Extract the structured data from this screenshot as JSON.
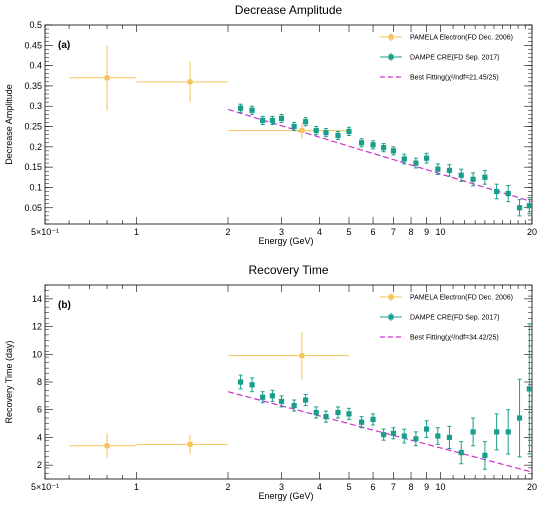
{
  "chart_data": [
    {
      "type": "scatter",
      "title": "Decrease Amplitude",
      "panel_label": "(a)",
      "xlabel": "Energy (GeV)",
      "ylabel": "Decrease Amplitude",
      "xscale": "log",
      "xlim": [
        0.5,
        20
      ],
      "ylim": [
        0.01,
        0.5
      ],
      "x_ticks": [
        "5×10⁻¹",
        "1",
        "2",
        "3",
        "4",
        "5",
        "6",
        "7",
        "8",
        "9",
        "10",
        "20"
      ],
      "y_ticks": [
        "0.05",
        "0.1",
        "0.15",
        "0.2",
        "0.25",
        "0.3",
        "0.35",
        "0.4",
        "0.45",
        "0.5"
      ],
      "legend_position": "top-right",
      "legend": [
        "PAMELA Electron(FD Dec. 2006)",
        "DAMPE CRE(FD Sep. 2017)",
        "Best Fitting(χ²/ndf=21.45/25)"
      ],
      "series": [
        {
          "color": "#f5c35a",
          "points": [
            {
              "x": 0.8,
              "xlo": 0.6,
              "xhi": 1.0,
              "y": 0.37,
              "err": 0.08
            },
            {
              "x": 1.5,
              "xlo": 1.0,
              "xhi": 2.0,
              "y": 0.36,
              "err": 0.05
            },
            {
              "x": 3.5,
              "xlo": 2.0,
              "xhi": 5.0,
              "y": 0.24,
              "err": 0.02
            }
          ]
        },
        {
          "color": "#1a9e8c",
          "points": [
            {
              "x": 2.2,
              "y": 0.295,
              "err": 0.01
            },
            {
              "x": 2.4,
              "y": 0.29,
              "err": 0.01
            },
            {
              "x": 2.6,
              "y": 0.265,
              "err": 0.01
            },
            {
              "x": 2.8,
              "y": 0.265,
              "err": 0.01
            },
            {
              "x": 3.0,
              "y": 0.27,
              "err": 0.01
            },
            {
              "x": 3.3,
              "y": 0.25,
              "err": 0.01
            },
            {
              "x": 3.6,
              "y": 0.262,
              "err": 0.01
            },
            {
              "x": 3.9,
              "y": 0.24,
              "err": 0.01
            },
            {
              "x": 4.2,
              "y": 0.235,
              "err": 0.01
            },
            {
              "x": 4.6,
              "y": 0.228,
              "err": 0.01
            },
            {
              "x": 5.0,
              "y": 0.238,
              "err": 0.01
            },
            {
              "x": 5.5,
              "y": 0.21,
              "err": 0.01
            },
            {
              "x": 6.0,
              "y": 0.205,
              "err": 0.01
            },
            {
              "x": 6.5,
              "y": 0.198,
              "err": 0.01
            },
            {
              "x": 7.0,
              "y": 0.19,
              "err": 0.01
            },
            {
              "x": 7.6,
              "y": 0.17,
              "err": 0.012
            },
            {
              "x": 8.3,
              "y": 0.16,
              "err": 0.012
            },
            {
              "x": 9.0,
              "y": 0.172,
              "err": 0.012
            },
            {
              "x": 9.8,
              "y": 0.145,
              "err": 0.013
            },
            {
              "x": 10.7,
              "y": 0.142,
              "err": 0.014
            },
            {
              "x": 11.7,
              "y": 0.13,
              "err": 0.015
            },
            {
              "x": 12.8,
              "y": 0.12,
              "err": 0.016
            },
            {
              "x": 14.0,
              "y": 0.125,
              "err": 0.017
            },
            {
              "x": 15.3,
              "y": 0.09,
              "err": 0.018
            },
            {
              "x": 16.7,
              "y": 0.085,
              "err": 0.02
            },
            {
              "x": 18.2,
              "y": 0.05,
              "err": 0.02
            },
            {
              "x": 19.6,
              "y": 0.055,
              "err": 0.02
            }
          ]
        }
      ],
      "fit": {
        "color": "#cc33cc",
        "points": [
          [
            2.0,
            0.292
          ],
          [
            20.0,
            0.065
          ]
        ]
      }
    },
    {
      "type": "scatter",
      "title": "Recovery Time",
      "panel_label": "(b)",
      "xlabel": "Energy (GeV)",
      "ylabel": "Recovery Time (day)",
      "xscale": "log",
      "xlim": [
        0.5,
        20
      ],
      "ylim": [
        1,
        15
      ],
      "x_ticks": [
        "5×10⁻¹",
        "1",
        "2",
        "3",
        "4",
        "5",
        "6",
        "7",
        "8",
        "9",
        "10",
        "20"
      ],
      "y_ticks": [
        "2",
        "4",
        "6",
        "8",
        "10",
        "12",
        "14"
      ],
      "legend_position": "top-right",
      "legend": [
        "PAMELA Electron(FD Dec. 2006)",
        "DAMPE CRE(FD Sep. 2017)",
        "Best Fitting(χ²/ndf=34.42/25)"
      ],
      "series": [
        {
          "color": "#f5c35a",
          "points": [
            {
              "x": 0.8,
              "xlo": 0.6,
              "xhi": 1.0,
              "y": 3.4,
              "err": 0.9
            },
            {
              "x": 1.5,
              "xlo": 1.0,
              "xhi": 2.0,
              "y": 3.5,
              "err": 0.7
            },
            {
              "x": 3.5,
              "xlo": 2.0,
              "xhi": 5.0,
              "y": 9.9,
              "err": 1.7
            }
          ]
        },
        {
          "color": "#1a9e8c",
          "points": [
            {
              "x": 2.2,
              "y": 8.0,
              "err": 0.5
            },
            {
              "x": 2.4,
              "y": 7.8,
              "err": 0.5
            },
            {
              "x": 2.6,
              "y": 6.9,
              "err": 0.4
            },
            {
              "x": 2.8,
              "y": 7.0,
              "err": 0.4
            },
            {
              "x": 3.0,
              "y": 6.6,
              "err": 0.4
            },
            {
              "x": 3.3,
              "y": 6.3,
              "err": 0.4
            },
            {
              "x": 3.6,
              "y": 6.7,
              "err": 0.4
            },
            {
              "x": 3.9,
              "y": 5.8,
              "err": 0.4
            },
            {
              "x": 4.2,
              "y": 5.5,
              "err": 0.4
            },
            {
              "x": 4.6,
              "y": 5.8,
              "err": 0.4
            },
            {
              "x": 5.0,
              "y": 5.7,
              "err": 0.4
            },
            {
              "x": 5.5,
              "y": 5.1,
              "err": 0.4
            },
            {
              "x": 6.0,
              "y": 5.3,
              "err": 0.4
            },
            {
              "x": 6.5,
              "y": 4.2,
              "err": 0.4
            },
            {
              "x": 7.0,
              "y": 4.3,
              "err": 0.4
            },
            {
              "x": 7.6,
              "y": 4.1,
              "err": 0.5
            },
            {
              "x": 8.3,
              "y": 3.9,
              "err": 0.5
            },
            {
              "x": 9.0,
              "y": 4.6,
              "err": 0.6
            },
            {
              "x": 9.8,
              "y": 4.1,
              "err": 0.6
            },
            {
              "x": 10.7,
              "y": 4.0,
              "err": 0.8
            },
            {
              "x": 11.7,
              "y": 2.9,
              "err": 0.8
            },
            {
              "x": 12.8,
              "y": 4.4,
              "err": 1.0
            },
            {
              "x": 14.0,
              "y": 2.7,
              "err": 1.0
            },
            {
              "x": 15.3,
              "y": 4.4,
              "err": 1.3
            },
            {
              "x": 16.7,
              "y": 4.4,
              "err": 1.6
            },
            {
              "x": 18.2,
              "y": 5.4,
              "err": 2.8
            },
            {
              "x": 19.6,
              "y": 7.5,
              "err": 4.7
            }
          ]
        }
      ],
      "fit": {
        "color": "#cc33cc",
        "points": [
          [
            2.0,
            7.3
          ],
          [
            20.0,
            1.5
          ]
        ]
      }
    }
  ]
}
